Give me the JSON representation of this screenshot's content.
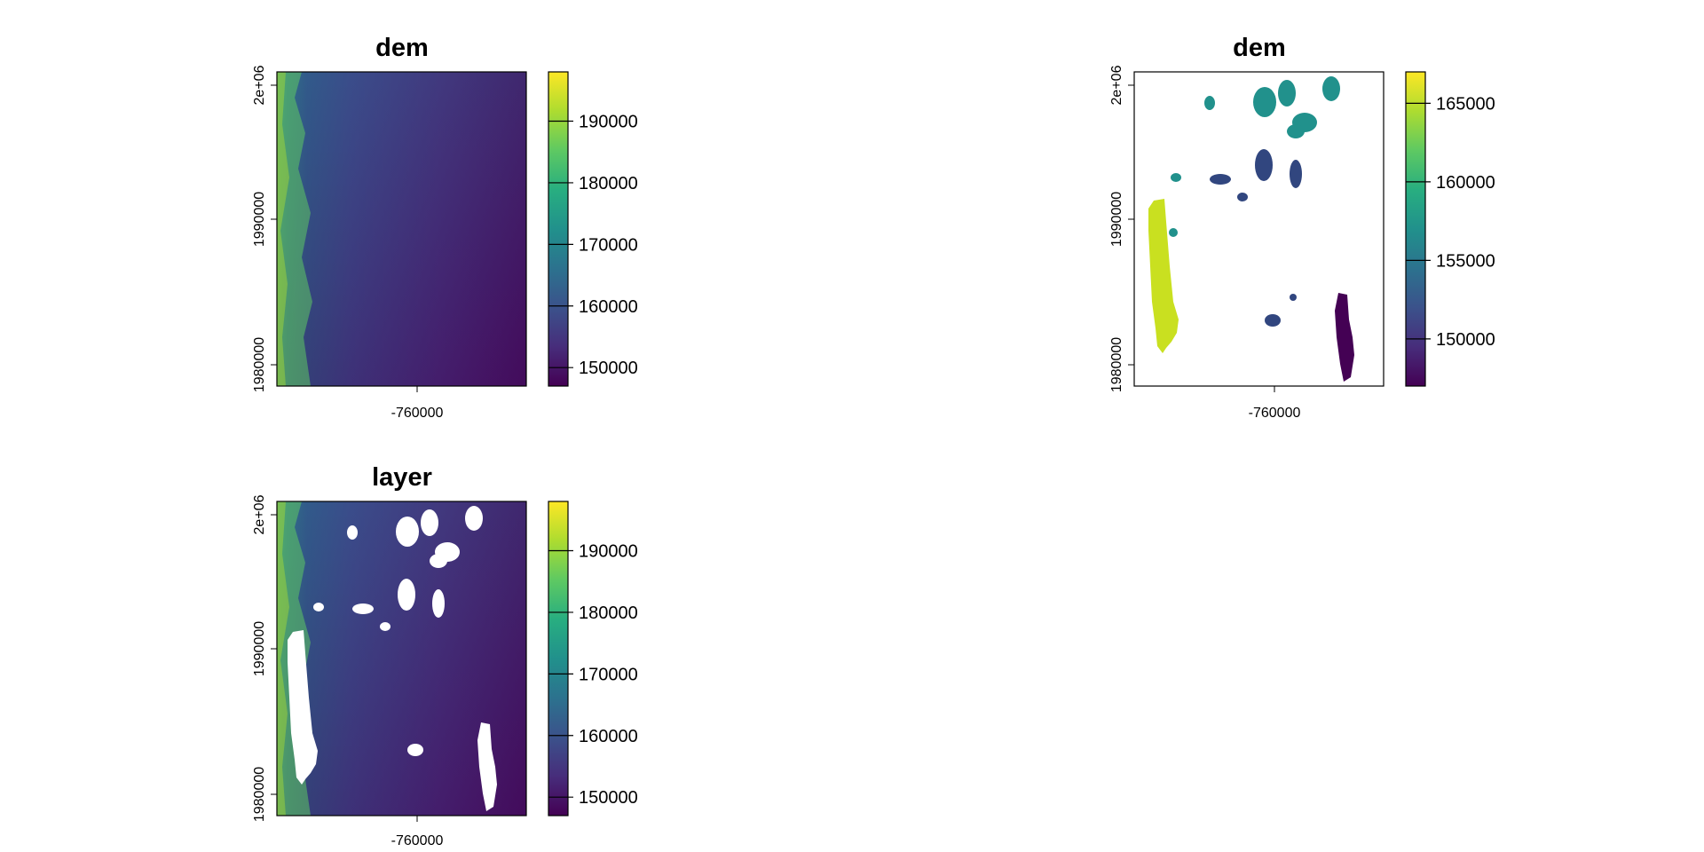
{
  "chart_data": [
    {
      "type": "heatmap",
      "title": "dem",
      "xticks": [
        "-760000"
      ],
      "yticks": [
        "1980000",
        "1990000",
        "2e+06"
      ],
      "legend": {
        "placement": "right",
        "ticks": [
          150000,
          160000,
          170000,
          180000,
          190000
        ],
        "range": [
          147000,
          198000
        ]
      },
      "colormap": [
        "#440154",
        "#472d7b",
        "#3b528b",
        "#2c728e",
        "#21918c",
        "#28ae80",
        "#5ec962",
        "#addc30",
        "#fde725"
      ],
      "holes": false,
      "high_values_side": "left"
    },
    {
      "type": "heatmap",
      "title": "dem",
      "xticks": [
        "-760000"
      ],
      "yticks": [
        "1980000",
        "1990000",
        "2e+06"
      ],
      "legend": {
        "placement": "right",
        "ticks": [
          150000,
          155000,
          160000,
          165000
        ],
        "range": [
          147000,
          167000
        ]
      },
      "colormap": [
        "#440154",
        "#472d7b",
        "#3b528b",
        "#2c728e",
        "#21918c",
        "#28ae80",
        "#5ec962",
        "#addc30",
        "#fde725"
      ],
      "regions": [
        {
          "value": 163500,
          "shape": "elongated",
          "area": "west"
        },
        {
          "value": 157500,
          "shape": "blobs",
          "area": "north"
        },
        {
          "value": 152500,
          "shape": "blobs",
          "area": "center"
        },
        {
          "value": 147500,
          "shape": "strip",
          "area": "southeast"
        }
      ]
    },
    {
      "type": "heatmap",
      "title": "layer",
      "xticks": [
        "-760000"
      ],
      "yticks": [
        "1980000",
        "1990000",
        "2e+06"
      ],
      "legend": {
        "placement": "right",
        "ticks": [
          150000,
          160000,
          170000,
          180000,
          190000
        ],
        "range": [
          147000,
          198000
        ]
      },
      "colormap": [
        "#440154",
        "#472d7b",
        "#3b528b",
        "#2c728e",
        "#21918c",
        "#28ae80",
        "#5ec962",
        "#addc30",
        "#fde725"
      ],
      "holes": true,
      "high_values_side": "left"
    }
  ]
}
